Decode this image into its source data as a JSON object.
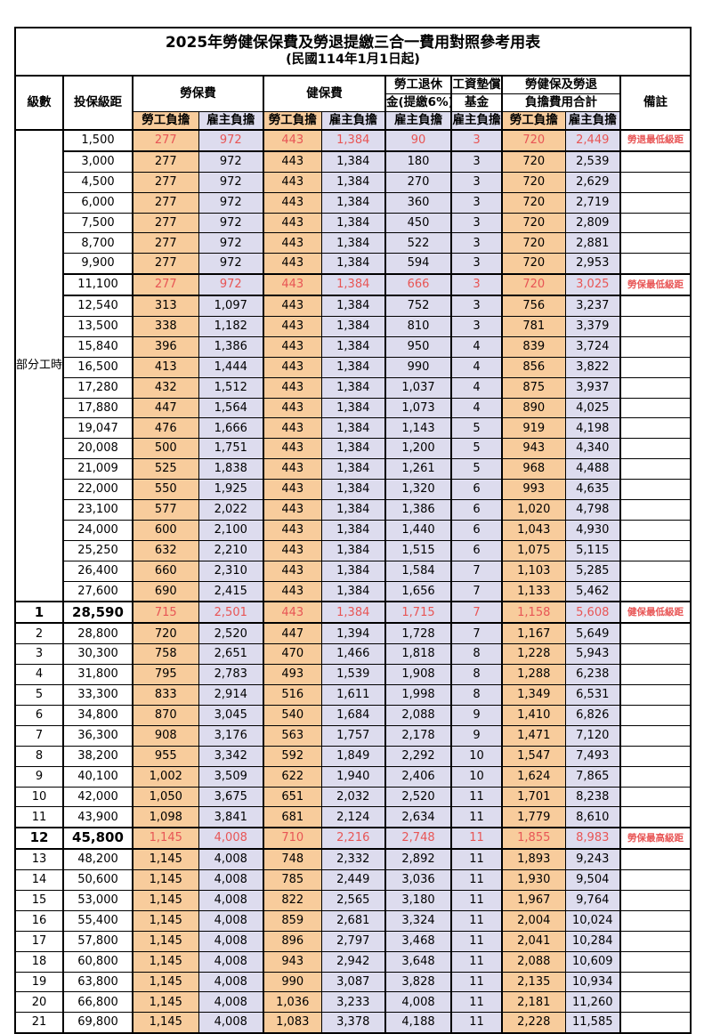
{
  "title": "2025年勞健保保費及勞退提繳三合一費用對照參考用表",
  "subtitle": "(民國114年1月1日起)",
  "colors": {
    "employee_bg": "#F8CC9C",
    "employer_bg": "#DDDCEE",
    "red_text": "#E85555",
    "border": "#000000"
  },
  "header": {
    "level": "級數",
    "bracket": "投保級距",
    "labor": "勞保費",
    "health": "健保費",
    "pension_l1": "勞工退休",
    "pension_l2": "金(提繳6%)",
    "wage_l1": "工資墊償",
    "wage_l2": "基金",
    "total_l1": "勞健保及勞退",
    "total_l2": "負擔費用合計",
    "note": "備註",
    "employee": "勞工負擔",
    "employer": "雇主負擔"
  },
  "part_time_label": "部分工時",
  "rows": [
    {
      "level": "部分工時",
      "level_rowspan": 23,
      "bracket": "1,500",
      "values": [
        "277",
        "972",
        "443",
        "1,384",
        "90",
        "3",
        "720",
        "2,449"
      ],
      "note": "勞退最低級距",
      "red": true,
      "bold": false
    },
    {
      "level": null,
      "bracket": "3,000",
      "values": [
        "277",
        "972",
        "443",
        "1,384",
        "180",
        "3",
        "720",
        "2,539"
      ],
      "note": "",
      "red": false,
      "bold": false
    },
    {
      "level": null,
      "bracket": "4,500",
      "values": [
        "277",
        "972",
        "443",
        "1,384",
        "270",
        "3",
        "720",
        "2,629"
      ],
      "note": "",
      "red": false,
      "bold": false
    },
    {
      "level": null,
      "bracket": "6,000",
      "values": [
        "277",
        "972",
        "443",
        "1,384",
        "360",
        "3",
        "720",
        "2,719"
      ],
      "note": "",
      "red": false,
      "bold": false
    },
    {
      "level": null,
      "bracket": "7,500",
      "values": [
        "277",
        "972",
        "443",
        "1,384",
        "450",
        "3",
        "720",
        "2,809"
      ],
      "note": "",
      "red": false,
      "bold": false
    },
    {
      "level": null,
      "bracket": "8,700",
      "values": [
        "277",
        "972",
        "443",
        "1,384",
        "522",
        "3",
        "720",
        "2,881"
      ],
      "note": "",
      "red": false,
      "bold": false
    },
    {
      "level": null,
      "bracket": "9,900",
      "values": [
        "277",
        "972",
        "443",
        "1,384",
        "594",
        "3",
        "720",
        "2,953"
      ],
      "note": "",
      "red": false,
      "bold": false
    },
    {
      "level": null,
      "bracket": "11,100",
      "values": [
        "277",
        "972",
        "443",
        "1,384",
        "666",
        "3",
        "720",
        "3,025"
      ],
      "note": "勞保最低級距",
      "red": true,
      "bold": false
    },
    {
      "level": null,
      "bracket": "12,540",
      "values": [
        "313",
        "1,097",
        "443",
        "1,384",
        "752",
        "3",
        "756",
        "3,237"
      ],
      "note": "",
      "red": false,
      "bold": false
    },
    {
      "level": null,
      "bracket": "13,500",
      "values": [
        "338",
        "1,182",
        "443",
        "1,384",
        "810",
        "3",
        "781",
        "3,379"
      ],
      "note": "",
      "red": false,
      "bold": false
    },
    {
      "level": null,
      "bracket": "15,840",
      "values": [
        "396",
        "1,386",
        "443",
        "1,384",
        "950",
        "4",
        "839",
        "3,724"
      ],
      "note": "",
      "red": false,
      "bold": false
    },
    {
      "level": null,
      "bracket": "16,500",
      "values": [
        "413",
        "1,444",
        "443",
        "1,384",
        "990",
        "4",
        "856",
        "3,822"
      ],
      "note": "",
      "red": false,
      "bold": false
    },
    {
      "level": null,
      "bracket": "17,280",
      "values": [
        "432",
        "1,512",
        "443",
        "1,384",
        "1,037",
        "4",
        "875",
        "3,937"
      ],
      "note": "",
      "red": false,
      "bold": false
    },
    {
      "level": null,
      "bracket": "17,880",
      "values": [
        "447",
        "1,564",
        "443",
        "1,384",
        "1,073",
        "4",
        "890",
        "4,025"
      ],
      "note": "",
      "red": false,
      "bold": false
    },
    {
      "level": null,
      "bracket": "19,047",
      "values": [
        "476",
        "1,666",
        "443",
        "1,384",
        "1,143",
        "5",
        "919",
        "4,198"
      ],
      "note": "",
      "red": false,
      "bold": false
    },
    {
      "level": null,
      "bracket": "20,008",
      "values": [
        "500",
        "1,751",
        "443",
        "1,384",
        "1,200",
        "5",
        "943",
        "4,340"
      ],
      "note": "",
      "red": false,
      "bold": false
    },
    {
      "level": null,
      "bracket": "21,009",
      "values": [
        "525",
        "1,838",
        "443",
        "1,384",
        "1,261",
        "5",
        "968",
        "4,488"
      ],
      "note": "",
      "red": false,
      "bold": false
    },
    {
      "level": null,
      "bracket": "22,000",
      "values": [
        "550",
        "1,925",
        "443",
        "1,384",
        "1,320",
        "6",
        "993",
        "4,635"
      ],
      "note": "",
      "red": false,
      "bold": false
    },
    {
      "level": null,
      "bracket": "23,100",
      "values": [
        "577",
        "2,022",
        "443",
        "1,384",
        "1,386",
        "6",
        "1,020",
        "4,798"
      ],
      "note": "",
      "red": false,
      "bold": false
    },
    {
      "level": null,
      "bracket": "24,000",
      "values": [
        "600",
        "2,100",
        "443",
        "1,384",
        "1,440",
        "6",
        "1,043",
        "4,930"
      ],
      "note": "",
      "red": false,
      "bold": false
    },
    {
      "level": null,
      "bracket": "25,250",
      "values": [
        "632",
        "2,210",
        "443",
        "1,384",
        "1,515",
        "6",
        "1,075",
        "5,115"
      ],
      "note": "",
      "red": false,
      "bold": false
    },
    {
      "level": null,
      "bracket": "26,400",
      "values": [
        "660",
        "2,310",
        "443",
        "1,384",
        "1,584",
        "7",
        "1,103",
        "5,285"
      ],
      "note": "",
      "red": false,
      "bold": false
    },
    {
      "level": null,
      "bracket": "27,600",
      "values": [
        "690",
        "2,415",
        "443",
        "1,384",
        "1,656",
        "7",
        "1,133",
        "5,462"
      ],
      "note": "",
      "red": false,
      "bold": false
    },
    {
      "level": "1",
      "bracket": "28,590",
      "values": [
        "715",
        "2,501",
        "443",
        "1,384",
        "1,715",
        "7",
        "1,158",
        "5,608"
      ],
      "note": "健保最低級距",
      "red": true,
      "bold": true
    },
    {
      "level": "2",
      "bracket": "28,800",
      "values": [
        "720",
        "2,520",
        "447",
        "1,394",
        "1,728",
        "7",
        "1,167",
        "5,649"
      ],
      "note": "",
      "red": false,
      "bold": false
    },
    {
      "level": "3",
      "bracket": "30,300",
      "values": [
        "758",
        "2,651",
        "470",
        "1,466",
        "1,818",
        "8",
        "1,228",
        "5,943"
      ],
      "note": "",
      "red": false,
      "bold": false
    },
    {
      "level": "4",
      "bracket": "31,800",
      "values": [
        "795",
        "2,783",
        "493",
        "1,539",
        "1,908",
        "8",
        "1,288",
        "6,238"
      ],
      "note": "",
      "red": false,
      "bold": false
    },
    {
      "level": "5",
      "bracket": "33,300",
      "values": [
        "833",
        "2,914",
        "516",
        "1,611",
        "1,998",
        "8",
        "1,349",
        "6,531"
      ],
      "note": "",
      "red": false,
      "bold": false
    },
    {
      "level": "6",
      "bracket": "34,800",
      "values": [
        "870",
        "3,045",
        "540",
        "1,684",
        "2,088",
        "9",
        "1,410",
        "6,826"
      ],
      "note": "",
      "red": false,
      "bold": false
    },
    {
      "level": "7",
      "bracket": "36,300",
      "values": [
        "908",
        "3,176",
        "563",
        "1,757",
        "2,178",
        "9",
        "1,471",
        "7,120"
      ],
      "note": "",
      "red": false,
      "bold": false
    },
    {
      "level": "8",
      "bracket": "38,200",
      "values": [
        "955",
        "3,342",
        "592",
        "1,849",
        "2,292",
        "10",
        "1,547",
        "7,493"
      ],
      "note": "",
      "red": false,
      "bold": false
    },
    {
      "level": "9",
      "bracket": "40,100",
      "values": [
        "1,002",
        "3,509",
        "622",
        "1,940",
        "2,406",
        "10",
        "1,624",
        "7,865"
      ],
      "note": "",
      "red": false,
      "bold": false
    },
    {
      "level": "10",
      "bracket": "42,000",
      "values": [
        "1,050",
        "3,675",
        "651",
        "2,032",
        "2,520",
        "11",
        "1,701",
        "8,238"
      ],
      "note": "",
      "red": false,
      "bold": false
    },
    {
      "level": "11",
      "bracket": "43,900",
      "values": [
        "1,098",
        "3,841",
        "681",
        "2,124",
        "2,634",
        "11",
        "1,779",
        "8,610"
      ],
      "note": "",
      "red": false,
      "bold": false
    },
    {
      "level": "12",
      "bracket": "45,800",
      "values": [
        "1,145",
        "4,008",
        "710",
        "2,216",
        "2,748",
        "11",
        "1,855",
        "8,983"
      ],
      "note": "勞保最高級距",
      "red": true,
      "bold": true
    },
    {
      "level": "13",
      "bracket": "48,200",
      "values": [
        "1,145",
        "4,008",
        "748",
        "2,332",
        "2,892",
        "11",
        "1,893",
        "9,243"
      ],
      "note": "",
      "red": false,
      "bold": false
    },
    {
      "level": "14",
      "bracket": "50,600",
      "values": [
        "1,145",
        "4,008",
        "785",
        "2,449",
        "3,036",
        "11",
        "1,930",
        "9,504"
      ],
      "note": "",
      "red": false,
      "bold": false
    },
    {
      "level": "15",
      "bracket": "53,000",
      "values": [
        "1,145",
        "4,008",
        "822",
        "2,565",
        "3,180",
        "11",
        "1,967",
        "9,764"
      ],
      "note": "",
      "red": false,
      "bold": false
    },
    {
      "level": "16",
      "bracket": "55,400",
      "values": [
        "1,145",
        "4,008",
        "859",
        "2,681",
        "3,324",
        "11",
        "2,004",
        "10,024"
      ],
      "note": "",
      "red": false,
      "bold": false
    },
    {
      "level": "17",
      "bracket": "57,800",
      "values": [
        "1,145",
        "4,008",
        "896",
        "2,797",
        "3,468",
        "11",
        "2,041",
        "10,284"
      ],
      "note": "",
      "red": false,
      "bold": false
    },
    {
      "level": "18",
      "bracket": "60,800",
      "values": [
        "1,145",
        "4,008",
        "943",
        "2,942",
        "3,648",
        "11",
        "2,088",
        "10,609"
      ],
      "note": "",
      "red": false,
      "bold": false
    },
    {
      "level": "19",
      "bracket": "63,800",
      "values": [
        "1,145",
        "4,008",
        "990",
        "3,087",
        "3,828",
        "11",
        "2,135",
        "10,934"
      ],
      "note": "",
      "red": false,
      "bold": false
    },
    {
      "level": "20",
      "bracket": "66,800",
      "values": [
        "1,145",
        "4,008",
        "1,036",
        "3,233",
        "4,008",
        "11",
        "2,181",
        "11,260"
      ],
      "note": "",
      "red": false,
      "bold": false
    },
    {
      "level": "21",
      "bracket": "69,800",
      "values": [
        "1,145",
        "4,008",
        "1,083",
        "3,378",
        "4,188",
        "11",
        "2,228",
        "11,585"
      ],
      "note": "",
      "red": false,
      "bold": false
    }
  ]
}
